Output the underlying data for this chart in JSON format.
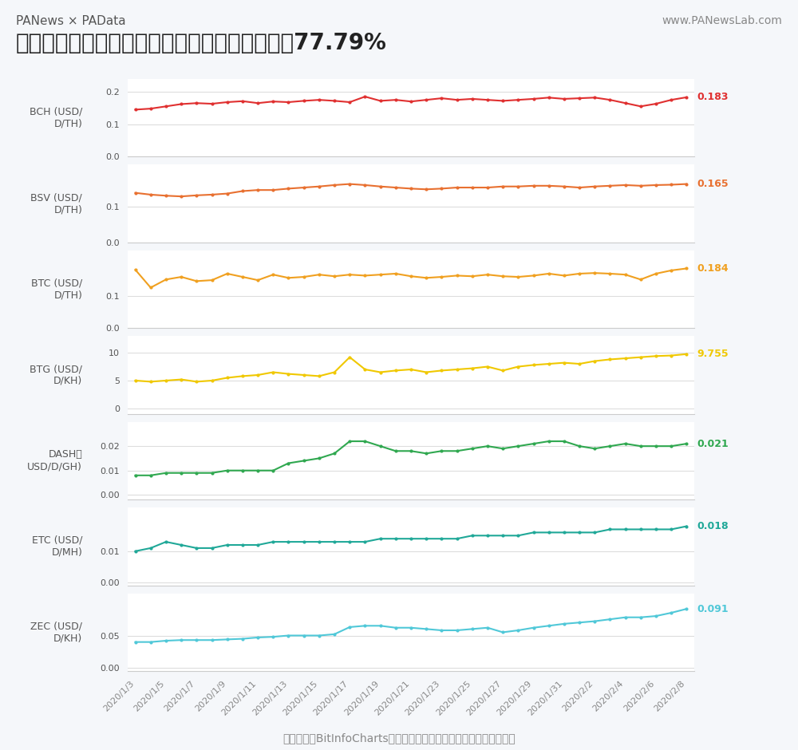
{
  "title": "进入减产年以来，减产币日均挖矿收益平均上涨77.79%",
  "subtitle_top": "PANews × PAData",
  "subtitle_top_right": "www.PANewsLab.com",
  "footer": "数据来源：BitInfoCharts；单位：参考各网络实际挖矿最小算力单位",
  "background_color": "#f5f7fa",
  "panel_bg": "#ffffff",
  "series": [
    {
      "name": "BCH (USD/\nD/TH)",
      "color": "#e03030",
      "end_label": "0.183",
      "ylim": [
        0.0,
        0.24
      ],
      "yticks": [
        0.0,
        0.1,
        0.2
      ],
      "data": [
        0.145,
        0.148,
        0.155,
        0.162,
        0.165,
        0.163,
        0.168,
        0.171,
        0.165,
        0.17,
        0.168,
        0.172,
        0.175,
        0.172,
        0.168,
        0.185,
        0.172,
        0.175,
        0.17,
        0.175,
        0.18,
        0.175,
        0.178,
        0.175,
        0.172,
        0.175,
        0.178,
        0.182,
        0.178,
        0.18,
        0.182,
        0.175,
        0.165,
        0.155,
        0.163,
        0.175,
        0.183
      ]
    },
    {
      "name": "BSV (USD/\nD/TH)",
      "color": "#e87030",
      "end_label": "0.165",
      "ylim": [
        0.0,
        0.22
      ],
      "yticks": [
        0.0,
        0.1
      ],
      "data": [
        0.14,
        0.135,
        0.132,
        0.13,
        0.133,
        0.135,
        0.138,
        0.145,
        0.148,
        0.148,
        0.152,
        0.155,
        0.158,
        0.162,
        0.165,
        0.162,
        0.158,
        0.155,
        0.152,
        0.15,
        0.152,
        0.155,
        0.155,
        0.155,
        0.158,
        0.158,
        0.16,
        0.16,
        0.158,
        0.155,
        0.158,
        0.16,
        0.162,
        0.16,
        0.162,
        0.163,
        0.165
      ]
    },
    {
      "name": "BTC (USD/\nD/TH)",
      "color": "#f0a020",
      "end_label": "0.184",
      "ylim": [
        0.0,
        0.24
      ],
      "yticks": [
        0.0,
        0.1
      ],
      "data": [
        0.18,
        0.125,
        0.15,
        0.158,
        0.145,
        0.148,
        0.168,
        0.158,
        0.148,
        0.165,
        0.155,
        0.158,
        0.165,
        0.16,
        0.165,
        0.162,
        0.165,
        0.168,
        0.16,
        0.155,
        0.158,
        0.162,
        0.16,
        0.165,
        0.16,
        0.158,
        0.162,
        0.168,
        0.162,
        0.168,
        0.17,
        0.168,
        0.165,
        0.15,
        0.168,
        0.178,
        0.184
      ]
    },
    {
      "name": "BTG (USD/\nD/KH)",
      "color": "#f0c800",
      "end_label": "9.755",
      "ylim": [
        -1,
        13
      ],
      "yticks": [
        0,
        5,
        10
      ],
      "data": [
        5.0,
        4.8,
        5.0,
        5.2,
        4.8,
        5.0,
        5.5,
        5.8,
        6.0,
        6.5,
        6.2,
        6.0,
        5.8,
        6.5,
        9.2,
        7.0,
        6.5,
        6.8,
        7.0,
        6.5,
        6.8,
        7.0,
        7.2,
        7.5,
        6.8,
        7.5,
        7.8,
        8.0,
        8.2,
        8.0,
        8.5,
        8.8,
        9.0,
        9.2,
        9.4,
        9.5,
        9.755
      ]
    },
    {
      "name": "DASH（\nUSD/D/GH)",
      "color": "#30a850",
      "end_label": "0.021",
      "ylim": [
        -0.002,
        0.03
      ],
      "yticks": [
        0.0,
        0.01,
        0.02
      ],
      "data": [
        0.008,
        0.008,
        0.009,
        0.009,
        0.009,
        0.009,
        0.01,
        0.01,
        0.01,
        0.01,
        0.013,
        0.014,
        0.015,
        0.017,
        0.022,
        0.022,
        0.02,
        0.018,
        0.018,
        0.017,
        0.018,
        0.018,
        0.019,
        0.02,
        0.019,
        0.02,
        0.021,
        0.022,
        0.022,
        0.02,
        0.019,
        0.02,
        0.021,
        0.02,
        0.02,
        0.02,
        0.021
      ]
    },
    {
      "name": "ETC (USD/\nD/MH)",
      "color": "#20a898",
      "end_label": "0.018",
      "ylim": [
        -0.001,
        0.024
      ],
      "yticks": [
        0.0,
        0.01
      ],
      "data": [
        0.01,
        0.011,
        0.013,
        0.012,
        0.011,
        0.011,
        0.012,
        0.012,
        0.012,
        0.013,
        0.013,
        0.013,
        0.013,
        0.013,
        0.013,
        0.013,
        0.014,
        0.014,
        0.014,
        0.014,
        0.014,
        0.014,
        0.015,
        0.015,
        0.015,
        0.015,
        0.016,
        0.016,
        0.016,
        0.016,
        0.016,
        0.017,
        0.017,
        0.017,
        0.017,
        0.017,
        0.018
      ]
    },
    {
      "name": "ZEC (USD/\nD/KH)",
      "color": "#50c8d8",
      "end_label": "0.091",
      "ylim": [
        -0.005,
        0.115
      ],
      "yticks": [
        0.0,
        0.05
      ],
      "data": [
        0.04,
        0.04,
        0.042,
        0.043,
        0.043,
        0.043,
        0.044,
        0.045,
        0.047,
        0.048,
        0.05,
        0.05,
        0.05,
        0.052,
        0.063,
        0.065,
        0.065,
        0.062,
        0.062,
        0.06,
        0.058,
        0.058,
        0.06,
        0.062,
        0.055,
        0.058,
        0.062,
        0.065,
        0.068,
        0.07,
        0.072,
        0.075,
        0.078,
        0.078,
        0.08,
        0.085,
        0.091
      ]
    }
  ],
  "x_tick_labels": [
    "2020/1/3",
    "2020/1/5",
    "2020/1/7",
    "2020/1/9",
    "2020/1/11",
    "2020/1/13",
    "2020/1/15",
    "2020/1/17",
    "2020/1/19",
    "2020/1/21",
    "2020/1/23",
    "2020/1/25",
    "2020/1/27",
    "2020/1/29",
    "2020/1/31",
    "2020/2/2",
    "2020/2/4",
    "2020/2/6",
    "2020/2/8"
  ],
  "n_data_points": 37,
  "n_tick_labels": 19
}
